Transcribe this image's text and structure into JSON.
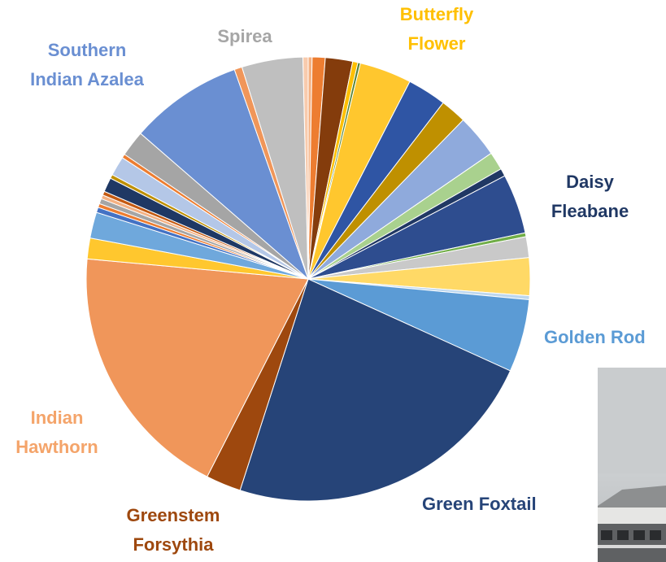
{
  "chart_data": {
    "type": "pie",
    "start_angle_deg": 0,
    "direction": "clockwise",
    "slices": [
      {
        "value": 0.3,
        "color": "#f4b183"
      },
      {
        "value": 1.0,
        "color": "#ed7d31"
      },
      {
        "value": 2.1,
        "color": "#843c0c"
      },
      {
        "value": 0.4,
        "color": "#ffc000"
      },
      {
        "value": 0.2,
        "color": "#548235"
      },
      {
        "value": 4.0,
        "color": "#ffc72e"
      },
      {
        "value": 3.0,
        "color": "#2f55a4"
      },
      {
        "value": 2.0,
        "color": "#bf9000"
      },
      {
        "value": 3.3,
        "color": "#8faadc"
      },
      {
        "value": 1.4,
        "color": "#a9d18e"
      },
      {
        "value": 0.6,
        "color": "#203864"
      },
      {
        "value": 4.6,
        "color": "#2e4d8f"
      },
      {
        "value": 0.3,
        "color": "#70ad47"
      },
      {
        "value": 1.6,
        "color": "#c9c9c9"
      },
      {
        "value": 2.9,
        "color": "#ffd966"
      },
      {
        "value": 0.3,
        "color": "#bdd7ee"
      },
      {
        "value": 5.6,
        "color": "#5b9bd5"
      },
      {
        "value": 24.5,
        "color": "#264478"
      },
      {
        "value": 2.7,
        "color": "#9e480e"
      },
      {
        "value": 20.0,
        "color": "#f0965a"
      },
      {
        "value": 1.6,
        "color": "#ffc72e"
      },
      {
        "value": 2.0,
        "color": "#6fa8dc"
      },
      {
        "value": 0.4,
        "color": "#4472c4"
      },
      {
        "value": 0.3,
        "color": "#ed7d31"
      },
      {
        "value": 0.4,
        "color": "#a5a5a5"
      },
      {
        "value": 0.3,
        "color": "#f4b183"
      },
      {
        "value": 0.3,
        "color": "#c55a11"
      },
      {
        "value": 1.1,
        "color": "#1f3864"
      },
      {
        "value": 0.3,
        "color": "#bf9000"
      },
      {
        "value": 1.5,
        "color": "#b4c7e7"
      },
      {
        "value": 0.3,
        "color": "#ed7d31"
      },
      {
        "value": 2.0,
        "color": "#a5a5a5"
      },
      {
        "value": 8.7,
        "color": "#6a8fd2"
      },
      {
        "value": 0.6,
        "color": "#f0965a"
      },
      {
        "value": 4.7,
        "color": "#bfbfbf"
      },
      {
        "value": 0.4,
        "color": "#f8cbad"
      }
    ],
    "labels": [
      {
        "name": "Spirea",
        "color": "#a6a6a6"
      },
      {
        "name": "Butterfly Flower",
        "color": "#ffc000"
      },
      {
        "name": "Southern Indian Azalea",
        "color": "#6a8fd2"
      },
      {
        "name": "Daisy Fleabane",
        "color": "#203864"
      },
      {
        "name": "Golden Rod",
        "color": "#5b9bd5"
      },
      {
        "name": "Indian Hawthorn",
        "color": "#f4a46a"
      },
      {
        "name": "Greenstem Forsythia",
        "color": "#9e480e"
      },
      {
        "name": "Green Foxtail",
        "color": "#264478"
      }
    ]
  },
  "labels": {
    "spirea": "Spirea",
    "butterfly_1": "Butterfly",
    "butterfly_2": "Flower",
    "southern_1": "Southern",
    "southern_2": "Indian Azalea",
    "daisy_1": "Daisy",
    "daisy_2": "Fleabane",
    "golden": "Golden Rod",
    "hawthorn_1": "Indian",
    "hawthorn_2": "Hawthorn",
    "forsythia_1": "Greenstem",
    "forsythia_2": "Forsythia",
    "foxtail": "Green Foxtail"
  }
}
